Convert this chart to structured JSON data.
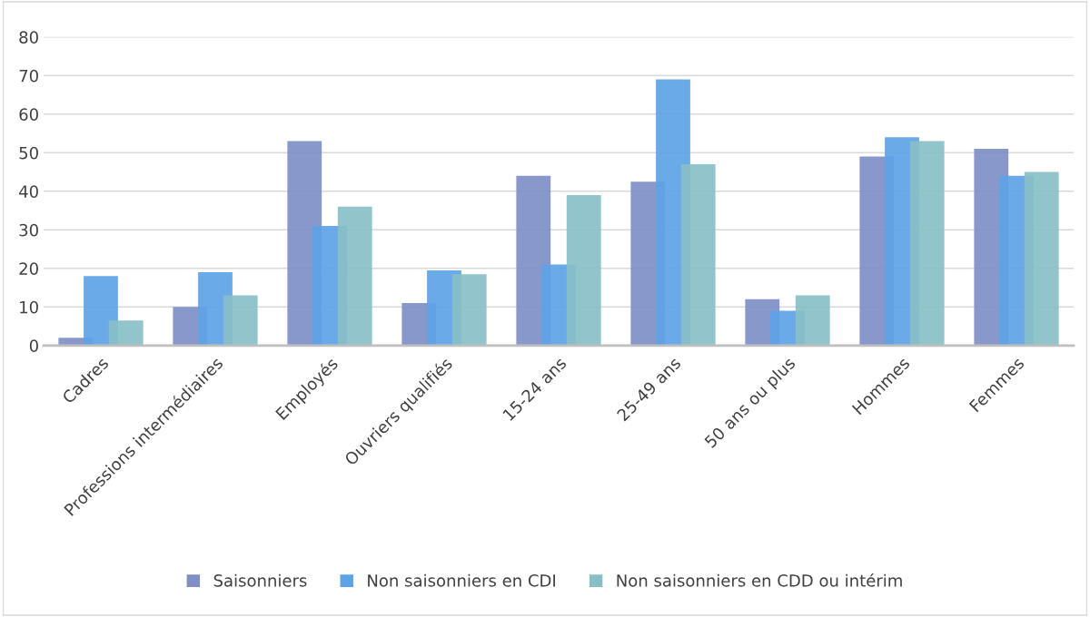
{
  "chart_data": {
    "type": "bar",
    "categories": [
      "Cadres",
      "Professions intermédiaires",
      "Employés",
      "Ouvriers qualifiés",
      "15-24 ans",
      "25-49 ans",
      "50 ans ou plus",
      "Hommes",
      "Femmes"
    ],
    "series": [
      {
        "name": "Saisonniers",
        "color": "#7f8fc6",
        "values": [
          2,
          10,
          53,
          11,
          44,
          42.5,
          12,
          49,
          51
        ]
      },
      {
        "name": "Non saisonniers en CDI",
        "color": "#5ea3e6",
        "values": [
          18,
          19,
          31,
          19.5,
          21,
          69,
          9,
          54,
          44
        ]
      },
      {
        "name": "Non saisonniers en CDD ou intérim",
        "color": "#88bfc7",
        "values": [
          6.5,
          13,
          36,
          18.5,
          39,
          47,
          13,
          53,
          45
        ]
      }
    ],
    "ylim": [
      0,
      80
    ],
    "yticks": [
      0,
      10,
      20,
      30,
      40,
      50,
      60,
      70,
      80
    ],
    "grid": "y",
    "legend": "bottom"
  }
}
